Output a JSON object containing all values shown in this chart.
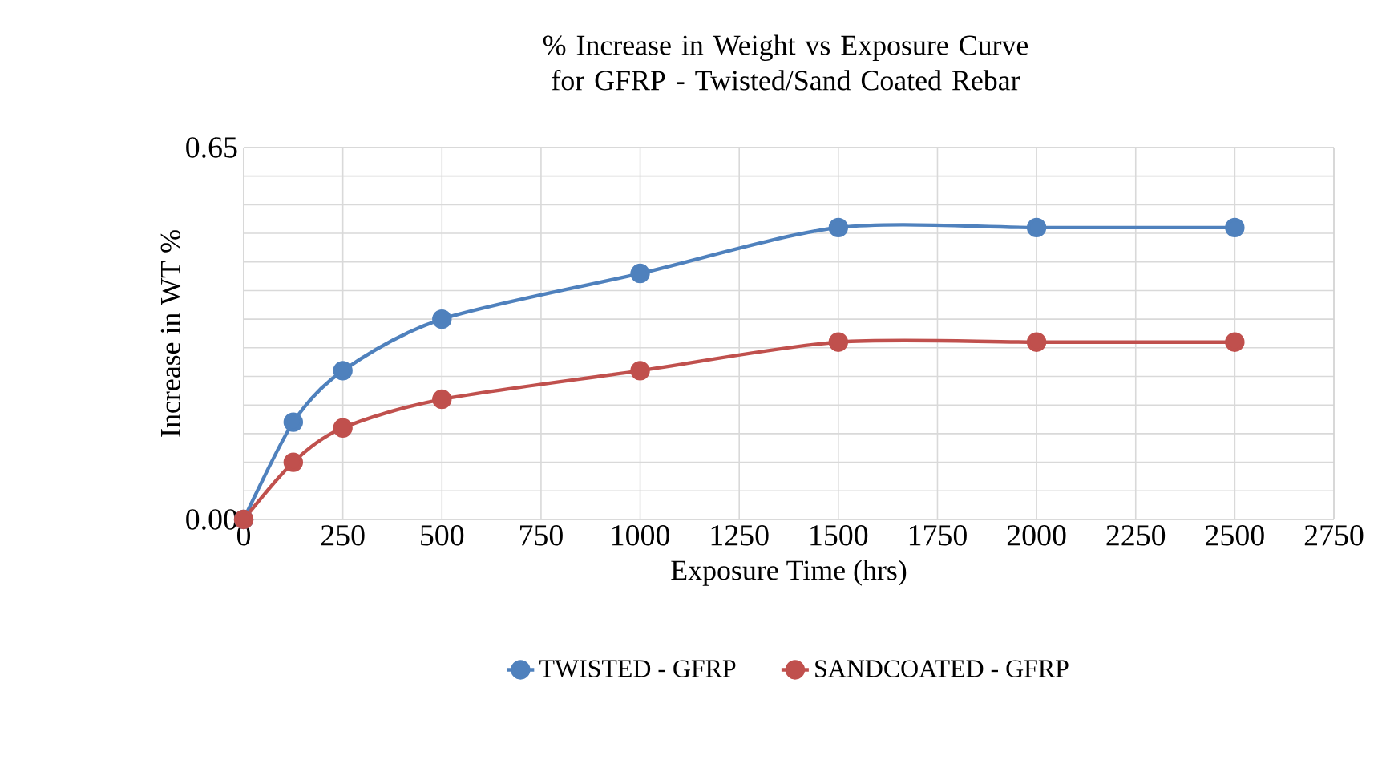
{
  "chart_data": {
    "type": "line",
    "title": "% Increase in Weight vs Exposure Curve for GFRP - Twisted/Sand Coated Rebar",
    "xlabel": "Exposure Time (hrs)",
    "ylabel": "Increase in WT  %",
    "x": [
      0,
      125,
      250,
      500,
      1000,
      1500,
      2000,
      2500
    ],
    "series": [
      {
        "name": "TWISTED - GFRP",
        "color": "#4f81bd",
        "values": [
          0,
          0.17,
          0.26,
          0.35,
          0.43,
          0.51,
          0.51,
          0.51
        ]
      },
      {
        "name": "SANDCOATED - GFRP",
        "color": "#c0504d",
        "values": [
          0,
          0.1,
          0.16,
          0.21,
          0.26,
          0.31,
          0.31,
          0.31
        ]
      }
    ],
    "xlim": [
      0,
      2750
    ],
    "xticks": [
      0,
      250,
      500,
      750,
      1000,
      1250,
      1500,
      1750,
      2000,
      2250,
      2500,
      2750
    ],
    "ylim": [
      0,
      0.65
    ],
    "yticks": [
      {
        "value": 0,
        "label": "0.00"
      },
      {
        "value": 0.05,
        "label": null
      },
      {
        "value": 0.1,
        "label": null
      },
      {
        "value": 0.15,
        "label": null
      },
      {
        "value": 0.2,
        "label": null
      },
      {
        "value": 0.25,
        "label": null
      },
      {
        "value": 0.3,
        "label": null
      },
      {
        "value": 0.35,
        "label": null
      },
      {
        "value": 0.4,
        "label": null
      },
      {
        "value": 0.45,
        "label": null
      },
      {
        "value": 0.5,
        "label": null
      },
      {
        "value": 0.55,
        "label": null
      },
      {
        "value": 0.6,
        "label": null
      },
      {
        "value": 0.65,
        "label": "0.65"
      }
    ],
    "grid": true,
    "legend": "bottom",
    "marker": "circle",
    "line_style": "solid"
  }
}
